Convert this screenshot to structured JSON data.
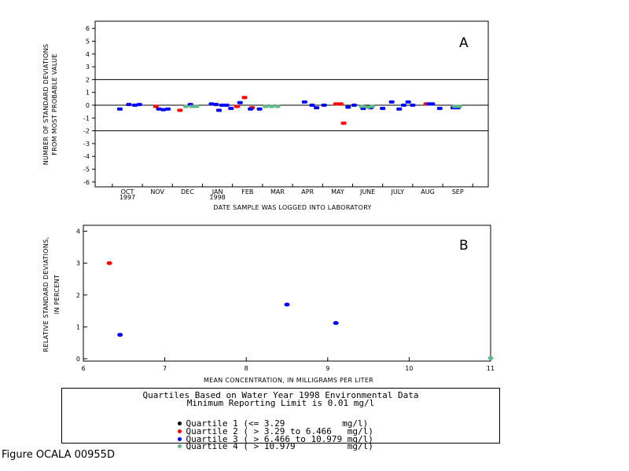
{
  "chart_data": [
    {
      "panel": "A",
      "type": "scatter",
      "xlabel": "DATE SAMPLE WAS LOGGED INTO LABORATORY",
      "ylabel_lines": [
        "NUMBER OF STANDARD DEVIATIONS",
        "FROM MOST PROBABLE VALUE"
      ],
      "ylim": [
        -6,
        6
      ],
      "yticks": [
        6,
        5,
        4,
        3,
        2,
        1,
        0,
        -1,
        -2,
        -3,
        -4,
        -5,
        -6
      ],
      "x_months": [
        "OCT",
        "NOV",
        "DEC",
        "JAN",
        "FEB",
        "MAR",
        "APR",
        "MAY",
        "JUNE",
        "JULY",
        "AUG",
        "SEP"
      ],
      "x_year_labels": [
        {
          "month_index": 0,
          "text": "1997"
        },
        {
          "month_index": 3,
          "text": "1998"
        }
      ],
      "reference_lines": [
        2,
        0,
        -2
      ],
      "series": [
        {
          "quartile": 2,
          "color": "#ff0000",
          "points": [
            {
              "month": 0.95,
              "y": -0.1
            },
            {
              "month": 1.75,
              "y": -0.4
            },
            {
              "month": 3.65,
              "y": -0.1
            },
            {
              "month": 3.9,
              "y": 0.6
            },
            {
              "month": 4.15,
              "y": -0.2
            },
            {
              "month": 6.95,
              "y": 0.1
            },
            {
              "month": 7.1,
              "y": 0.1
            },
            {
              "month": 7.2,
              "y": -1.4
            },
            {
              "month": 9.95,
              "y": 0.1
            }
          ]
        },
        {
          "quartile": 3,
          "color": "#0000ff",
          "points": [
            {
              "month": -0.25,
              "y": -0.3
            },
            {
              "month": 0.05,
              "y": 0.05
            },
            {
              "month": 0.25,
              "y": 0.0
            },
            {
              "month": 0.4,
              "y": 0.05
            },
            {
              "month": 1.05,
              "y": -0.3
            },
            {
              "month": 1.2,
              "y": -0.35
            },
            {
              "month": 1.35,
              "y": -0.3
            },
            {
              "month": 2.1,
              "y": 0.05
            },
            {
              "month": 2.8,
              "y": 0.1
            },
            {
              "month": 2.95,
              "y": 0.05
            },
            {
              "month": 3.05,
              "y": -0.4
            },
            {
              "month": 3.15,
              "y": 0.0
            },
            {
              "month": 3.3,
              "y": 0.0
            },
            {
              "month": 3.75,
              "y": 0.2
            },
            {
              "month": 3.45,
              "y": -0.25
            },
            {
              "month": 4.1,
              "y": -0.3
            },
            {
              "month": 4.4,
              "y": -0.3
            },
            {
              "month": 5.9,
              "y": 0.25
            },
            {
              "month": 6.15,
              "y": 0.0
            },
            {
              "month": 6.3,
              "y": -0.2
            },
            {
              "month": 6.55,
              "y": 0.0
            },
            {
              "month": 7.35,
              "y": -0.15
            },
            {
              "month": 7.55,
              "y": 0.0
            },
            {
              "month": 7.85,
              "y": -0.25
            },
            {
              "month": 8.1,
              "y": -0.2
            },
            {
              "month": 8.5,
              "y": -0.25
            },
            {
              "month": 8.8,
              "y": 0.25
            },
            {
              "month": 9.05,
              "y": -0.3
            },
            {
              "month": 9.2,
              "y": 0.0
            },
            {
              "month": 9.35,
              "y": 0.25
            },
            {
              "month": 9.5,
              "y": 0.0
            },
            {
              "month": 10.05,
              "y": 0.1
            },
            {
              "month": 10.15,
              "y": 0.1
            },
            {
              "month": 10.4,
              "y": -0.25
            },
            {
              "month": 10.85,
              "y": -0.2
            },
            {
              "month": 11.0,
              "y": -0.2
            }
          ]
        },
        {
          "quartile": 4,
          "color": "#5fb88a",
          "points": [
            {
              "month": 1.95,
              "y": -0.1
            },
            {
              "month": 2.15,
              "y": -0.1
            },
            {
              "month": 2.3,
              "y": -0.1
            },
            {
              "month": 4.6,
              "y": -0.1
            },
            {
              "month": 4.8,
              "y": -0.1
            },
            {
              "month": 5.0,
              "y": -0.1
            },
            {
              "month": 7.8,
              "y": -0.1
            },
            {
              "month": 8.0,
              "y": -0.15
            },
            {
              "month": 8.15,
              "y": -0.1
            },
            {
              "month": 10.9,
              "y": -0.1
            },
            {
              "month": 11.05,
              "y": -0.1
            }
          ]
        }
      ]
    },
    {
      "panel": "B",
      "type": "scatter",
      "xlabel": "MEAN CONCENTRATION, IN MILLIGRAMS PER LITER",
      "ylabel_lines": [
        "RELATIVE STANDARD DEVIATIONS,",
        "IN PERCENT"
      ],
      "xlim": [
        6,
        11
      ],
      "ylim": [
        0,
        4
      ],
      "xticks": [
        6,
        7,
        8,
        9,
        10,
        11
      ],
      "yticks": [
        4,
        3,
        2,
        1,
        0
      ],
      "series": [
        {
          "quartile": 2,
          "color": "#ff0000",
          "points": [
            {
              "x": 6.32,
              "y": 3.0
            }
          ]
        },
        {
          "quartile": 3,
          "color": "#0000ff",
          "points": [
            {
              "x": 6.45,
              "y": 0.75
            },
            {
              "x": 8.5,
              "y": 1.7
            },
            {
              "x": 9.1,
              "y": 1.12
            }
          ]
        },
        {
          "quartile": 4,
          "color": "#5fb88a",
          "points": [
            {
              "x": 11.0,
              "y": 0.02
            }
          ]
        }
      ]
    }
  ],
  "legend": {
    "title_line1": "Quartiles Based on Water Year 1998 Environmental Data",
    "title_line2": "Minimum Reporting Limit is 0.01 mg/l",
    "entries": [
      {
        "label": "Quartile 1 (<= 3.29           mg/l)",
        "color": "#000000"
      },
      {
        "label": "Quartile 2 ( > 3.29 to 6.466   mg/l)",
        "color": "#ff0000"
      },
      {
        "label": "Quartile 3 ( > 6.466 to 10.979 mg/l)",
        "color": "#0000ff"
      },
      {
        "label": "Quartile 4 ( > 10.979          mg/l)",
        "color": "#5fb88a"
      }
    ]
  },
  "figure_label": "Figure OCALA 00955D"
}
